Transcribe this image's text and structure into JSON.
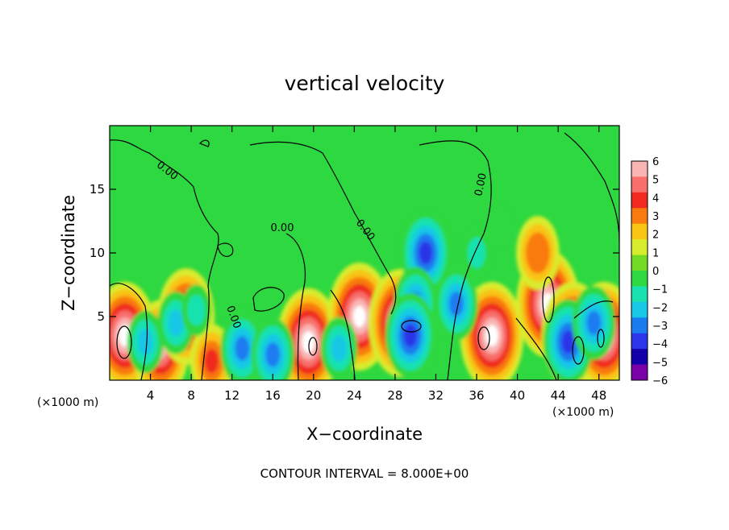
{
  "chart_data": {
    "type": "heatmap",
    "title": "vertical velocity",
    "xlabel": "X−coordinate",
    "ylabel": "Z−coordinate",
    "x_unit": "(×1000 m)",
    "y_unit": "(×1000 m)",
    "x_ticks": [
      4,
      8,
      12,
      16,
      20,
      24,
      28,
      32,
      36,
      40,
      44,
      48
    ],
    "x_tick_labels": [
      "4",
      "8",
      "12",
      "16",
      "20",
      "24",
      "28",
      "32",
      "36",
      "40",
      "44",
      "48"
    ],
    "y_ticks": [
      5,
      10,
      15
    ],
    "y_tick_labels": [
      "5",
      "10",
      "15"
    ],
    "xlim": [
      0,
      50
    ],
    "ylim": [
      0,
      20
    ],
    "colorbar": {
      "ticks": [
        6,
        5,
        4,
        3,
        2,
        1,
        0,
        -1,
        -2,
        -3,
        -4,
        -5,
        -6
      ],
      "tick_labels": [
        "6",
        "5",
        "4",
        "3",
        "2",
        "1",
        "0",
        "−1",
        "−2",
        "−3",
        "−4",
        "−5",
        "−6"
      ],
      "range": [
        -6,
        6
      ],
      "colors": [
        "#7a00a8",
        "#1400a8",
        "#2a36e8",
        "#1b7cf0",
        "#18c8e6",
        "#19e2b0",
        "#2ed840",
        "#72dc24",
        "#d8ec2e",
        "#f9c414",
        "#f97a0e",
        "#f02a1e",
        "#f86f6c",
        "#f9b4b4"
      ]
    },
    "contour_labels": [
      "0.00",
      "0.00",
      "0.00",
      "0.00",
      "0.00"
    ],
    "contour_interval_text": "CONTOUR INTERVAL = 8.000E+00",
    "features": [
      {
        "x": 1.5,
        "z": 3.5,
        "value": 7
      },
      {
        "x": 5.0,
        "z": 2.5,
        "value": 6
      },
      {
        "x": 7.5,
        "z": 5.0,
        "value": 6
      },
      {
        "x": 10.0,
        "z": 1.5,
        "value": 4
      },
      {
        "x": 19.5,
        "z": 3.0,
        "value": 7
      },
      {
        "x": 24.5,
        "z": 5.0,
        "value": 7
      },
      {
        "x": 28.5,
        "z": 4.5,
        "value": 7
      },
      {
        "x": 37.5,
        "z": 3.5,
        "value": 7
      },
      {
        "x": 43.0,
        "z": 6.0,
        "value": 7
      },
      {
        "x": 42.0,
        "z": 10.0,
        "value": 3.5
      },
      {
        "x": 45.5,
        "z": 3.5,
        "value": 7
      },
      {
        "x": 48.5,
        "z": 3.5,
        "value": 7
      },
      {
        "x": 31.0,
        "z": 10.0,
        "value": -5
      },
      {
        "x": 30.0,
        "z": 6.0,
        "value": -4
      },
      {
        "x": 29.5,
        "z": 3.5,
        "value": -4.5
      },
      {
        "x": 34.0,
        "z": 6.0,
        "value": -4
      },
      {
        "x": 13.0,
        "z": 2.5,
        "value": -3.5
      },
      {
        "x": 16.0,
        "z": 2.0,
        "value": -4
      },
      {
        "x": 22.5,
        "z": 2.5,
        "value": -3
      },
      {
        "x": 45.0,
        "z": 3.0,
        "value": -4.5
      },
      {
        "x": 47.5,
        "z": 4.5,
        "value": -4
      },
      {
        "x": 6.5,
        "z": 4.5,
        "value": -3
      },
      {
        "x": 8.5,
        "z": 5.5,
        "value": -2
      },
      {
        "x": 36.0,
        "z": 10.0,
        "value": -1.5
      },
      {
        "x": 38.5,
        "z": 12.0,
        "value": -1
      },
      {
        "x": 3.5,
        "z": 3.0,
        "value": -2.5
      }
    ]
  }
}
